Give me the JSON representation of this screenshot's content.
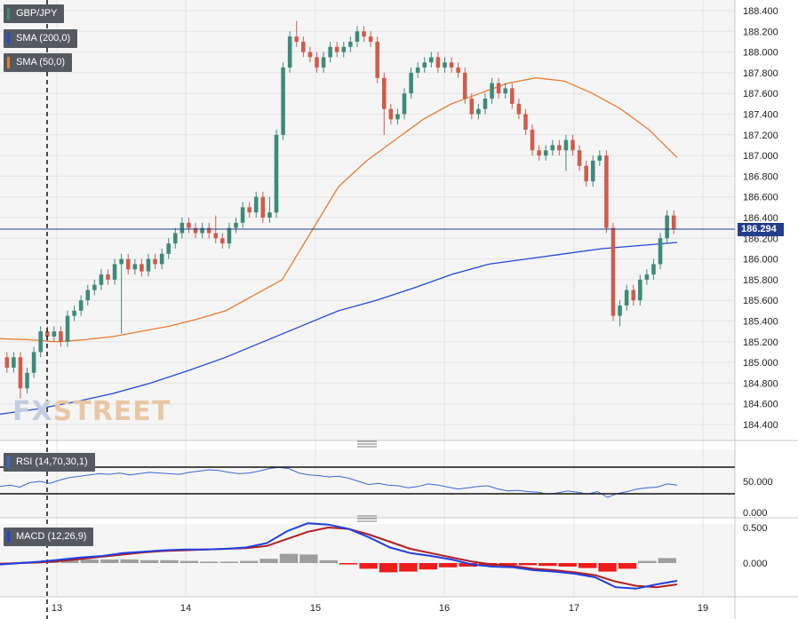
{
  "instrument": "GBP/JPY",
  "price_tag": "186.294",
  "indicators": {
    "sma200": "SMA (200,0)",
    "sma50": "SMA (50,0)",
    "rsi": "RSI (14,70,30,1)",
    "macd": "MACD (12,26,9)"
  },
  "colors": {
    "up": "#3d8a78",
    "down": "#d05b4b",
    "sma200": "#2448d8",
    "sma50": "#e97b2c",
    "rsi": "#3a66d6",
    "macd_line": "#1f3fe0",
    "signal_line": "#b21e1e",
    "hist_pos": "#9e9e9e",
    "hist_neg": "#ee1c1c",
    "price_line": "#233e8b"
  },
  "watermark": {
    "a": "FX",
    "b": "STREET"
  },
  "chart_data": [
    {
      "type": "candlestick",
      "title": "GBP/JPY",
      "x_ticks": [
        "13",
        "14",
        "15",
        "16",
        "17",
        "19"
      ],
      "y_ticks": [
        "188.400",
        "188.200",
        "188.000",
        "187.800",
        "187.600",
        "187.400",
        "187.200",
        "187.000",
        "186.800",
        "186.600",
        "186.400",
        "186.200",
        "186.000",
        "185.800",
        "185.600",
        "185.400",
        "185.200",
        "185.000",
        "184.800",
        "184.600",
        "184.400"
      ],
      "ylim": [
        184.3,
        188.45
      ],
      "current_price": 186.294,
      "closes": [
        184.95,
        185.05,
        184.75,
        184.9,
        185.1,
        185.3,
        185.25,
        185.3,
        185.2,
        185.45,
        185.5,
        185.6,
        185.7,
        185.75,
        185.85,
        185.8,
        185.95,
        186.0,
        185.9,
        185.95,
        185.88,
        186.0,
        185.95,
        186.05,
        186.15,
        186.25,
        186.35,
        186.3,
        186.25,
        186.3,
        186.25,
        186.2,
        186.15,
        186.3,
        186.35,
        186.5,
        186.45,
        186.6,
        186.4,
        186.45,
        187.2,
        187.85,
        188.15,
        188.1,
        188.0,
        187.95,
        187.85,
        187.95,
        188.05,
        188.0,
        188.05,
        188.1,
        188.2,
        188.15,
        188.1,
        187.75,
        187.45,
        187.35,
        187.4,
        187.6,
        187.8,
        187.85,
        187.9,
        187.95,
        187.85,
        187.9,
        187.85,
        187.8,
        187.55,
        187.4,
        187.45,
        187.55,
        187.7,
        187.6,
        187.65,
        187.5,
        187.4,
        187.25,
        187.05,
        187.0,
        187.05,
        187.1,
        187.05,
        187.15,
        187.05,
        186.9,
        186.75,
        186.95,
        187.0,
        186.3,
        185.45,
        185.55,
        185.7,
        185.6,
        185.8,
        185.85,
        185.95,
        186.2,
        186.42,
        186.29
      ],
      "sma200": [
        184.5,
        184.55,
        184.62,
        184.7,
        184.8,
        184.92,
        185.05,
        185.2,
        185.35,
        185.5,
        185.6,
        185.72,
        185.85,
        185.95,
        186.0,
        186.05,
        186.1,
        186.13,
        186.16
      ],
      "sma50": [
        185.23,
        185.22,
        185.2,
        185.22,
        185.25,
        185.3,
        185.35,
        185.42,
        185.5,
        185.65,
        185.8,
        186.25,
        186.7,
        186.95,
        187.15,
        187.35,
        187.5,
        187.6,
        187.7,
        187.75,
        187.72,
        187.6,
        187.45,
        187.25,
        186.98
      ]
    },
    {
      "type": "line",
      "title": "RSI (14,70,30,1)",
      "y_ticks": [
        "50.000",
        "0.000"
      ],
      "levels": [
        70,
        30
      ],
      "values": [
        42,
        44,
        41,
        48,
        50,
        47,
        52,
        56,
        58,
        60,
        62,
        61,
        63,
        60,
        62,
        64,
        63,
        62,
        61,
        64,
        66,
        68,
        67,
        64,
        62,
        63,
        66,
        70,
        72,
        70,
        63,
        60,
        59,
        57,
        58,
        55,
        50,
        45,
        47,
        44,
        43,
        40,
        42,
        46,
        44,
        41,
        38,
        40,
        42,
        43,
        38,
        35,
        36,
        34,
        33,
        30,
        32,
        35,
        33,
        30,
        34,
        25,
        31,
        34,
        38,
        40,
        41,
        46,
        44
      ]
    },
    {
      "type": "line",
      "title": "MACD (12,26,9)",
      "y_ticks": [
        "0.500",
        "0.000"
      ],
      "macd": [
        -0.02,
        0.0,
        0.02,
        0.05,
        0.08,
        0.1,
        0.14,
        0.16,
        0.18,
        0.19,
        0.19,
        0.2,
        0.22,
        0.28,
        0.45,
        0.56,
        0.54,
        0.48,
        0.36,
        0.22,
        0.14,
        0.1,
        0.05,
        -0.02,
        -0.05,
        -0.06,
        -0.1,
        -0.12,
        -0.15,
        -0.2,
        -0.34,
        -0.36,
        -0.3,
        -0.25
      ],
      "signal": [
        -0.01,
        0.0,
        0.01,
        0.03,
        0.06,
        0.09,
        0.12,
        0.15,
        0.17,
        0.18,
        0.19,
        0.2,
        0.21,
        0.24,
        0.34,
        0.44,
        0.5,
        0.48,
        0.4,
        0.3,
        0.2,
        0.14,
        0.08,
        0.02,
        -0.02,
        -0.04,
        -0.08,
        -0.1,
        -0.13,
        -0.17,
        -0.26,
        -0.32,
        -0.34,
        -0.3
      ],
      "histogram": [
        0.0,
        0.02,
        0.04,
        0.05,
        0.05,
        0.05,
        0.05,
        0.04,
        0.04,
        0.03,
        0.02,
        0.02,
        0.03,
        0.06,
        0.13,
        0.12,
        0.04,
        -0.02,
        -0.08,
        -0.13,
        -0.12,
        -0.09,
        -0.06,
        -0.05,
        -0.04,
        -0.03,
        -0.03,
        -0.04,
        -0.05,
        -0.07,
        -0.12,
        -0.08,
        0.03,
        0.07
      ]
    }
  ]
}
